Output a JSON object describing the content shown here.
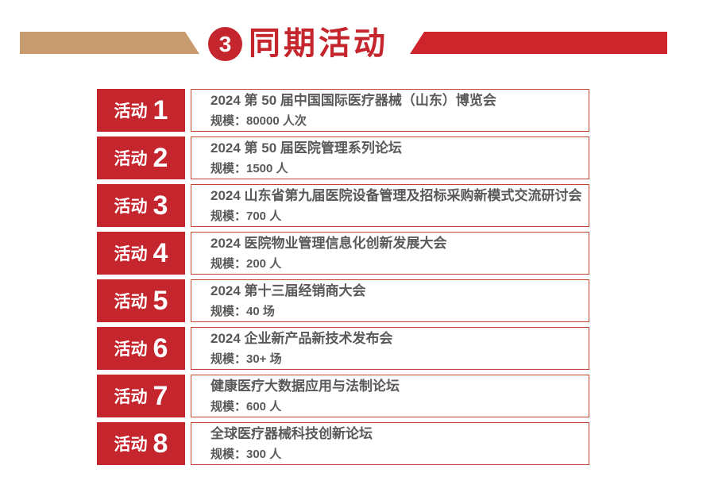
{
  "colors": {
    "accent_red": "#c5252c",
    "accent_red_bright": "#ce252d",
    "accent_tan": "#c89b6e",
    "row_border": "#c14631",
    "text_gray": "#58595b"
  },
  "header": {
    "badge": "3",
    "title": "同期活动"
  },
  "activities": [
    {
      "label": "活动",
      "number": "1",
      "title": "2024 第 50 届中国国际医疗器械（山东）博览会",
      "scale": "规模：80000 人次"
    },
    {
      "label": "活动",
      "number": "2",
      "title": "2024 第 50 届医院管理系列论坛",
      "scale": "规模：1500 人"
    },
    {
      "label": "活动",
      "number": "3",
      "title": "2024 山东省第九届医院设备管理及招标采购新模式交流研讨会",
      "scale": "规模：700 人"
    },
    {
      "label": "活动",
      "number": "4",
      "title": "2024 医院物业管理信息化创新发展大会",
      "scale": "规模：200 人"
    },
    {
      "label": "活动",
      "number": "5",
      "title": "2024 第十三届经销商大会",
      "scale": "规模：40 场"
    },
    {
      "label": "活动",
      "number": "6",
      "title": "2024 企业新产品新技术发布会",
      "scale": "规模：30+ 场"
    },
    {
      "label": "活动",
      "number": "7",
      "title": "健康医疗大数据应用与法制论坛",
      "scale": "规模：600 人"
    },
    {
      "label": "活动",
      "number": "8",
      "title": "全球医疗器械科技创新论坛",
      "scale": "规模：300 人"
    }
  ]
}
